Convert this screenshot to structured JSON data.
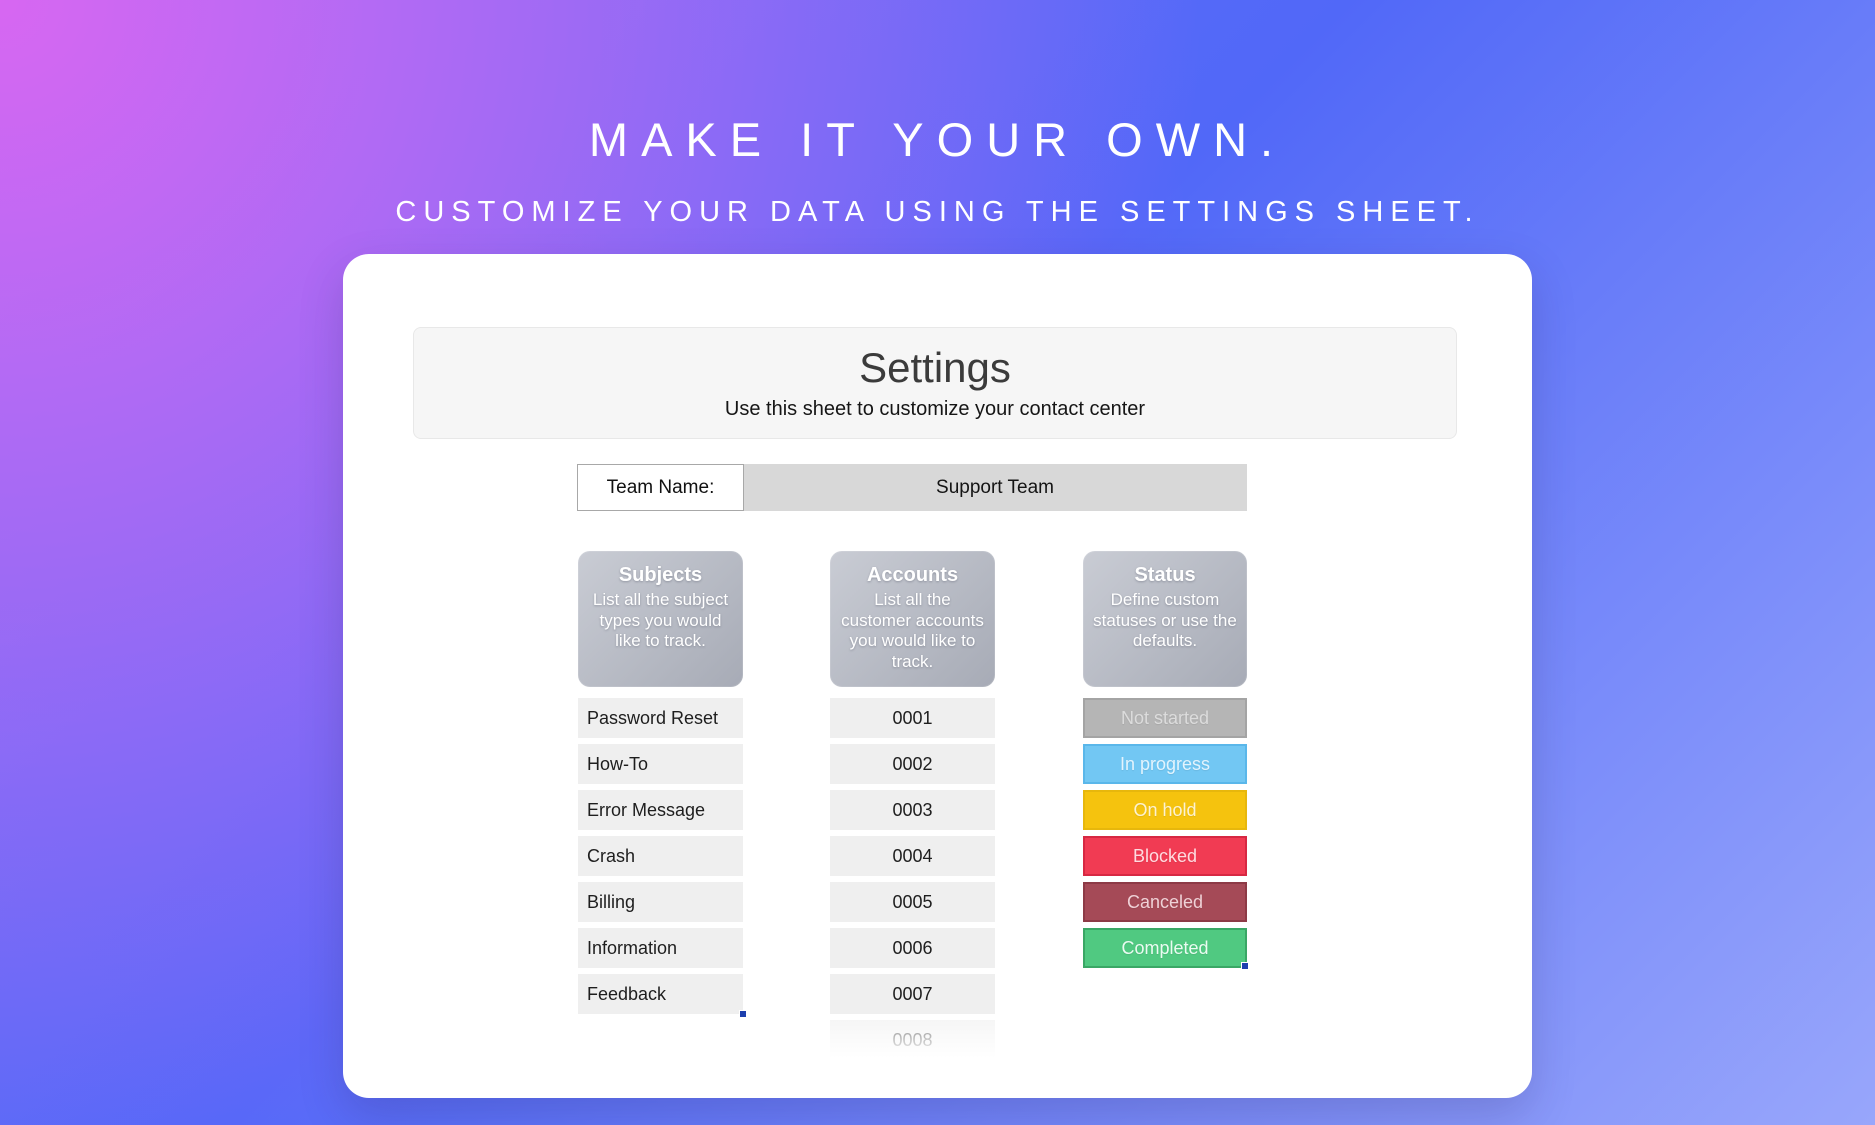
{
  "hero": {
    "title": "MAKE IT YOUR OWN.",
    "subtitle": "CUSTOMIZE YOUR DATA USING THE SETTINGS SHEET."
  },
  "sheet": {
    "title": "Settings",
    "subtitle": "Use this sheet to customize your contact center",
    "team_name": {
      "label": "Team Name:",
      "value": "Support Team"
    },
    "columns": {
      "subjects": {
        "title": "Subjects",
        "description": "List all the subject types you would like to track.",
        "items": [
          "Password Reset",
          "How-To",
          "Error Message",
          "Crash",
          "Billing",
          "Information",
          "Feedback"
        ]
      },
      "accounts": {
        "title": "Accounts",
        "description": "List all the customer accounts you would like to track.",
        "items": [
          "0001",
          "0002",
          "0003",
          "0004",
          "0005",
          "0006",
          "0007"
        ],
        "faded_item": "0008"
      },
      "status": {
        "title": "Status",
        "description": "Define custom statuses or use the defaults.",
        "items": [
          {
            "label": "Not started",
            "bg": "#b5b5b5",
            "border": "#a4a4a4",
            "text": "#dcdcdc"
          },
          {
            "label": "In progress",
            "bg": "#72c7f3",
            "border": "#5ab7ea",
            "text": "#e2f4fe"
          },
          {
            "label": "On hold",
            "bg": "#f5c30e",
            "border": "#e7b70c",
            "text": "#fdf2d0"
          },
          {
            "label": "Blocked",
            "bg": "#f13b53",
            "border": "#d72842",
            "text": "#ffdbe0"
          },
          {
            "label": "Canceled",
            "bg": "#a54a57",
            "border": "#8d3a46",
            "text": "#efd1d6"
          },
          {
            "label": "Completed",
            "bg": "#50c981",
            "border": "#3aa765",
            "text": "#eafbf1"
          }
        ]
      }
    }
  }
}
